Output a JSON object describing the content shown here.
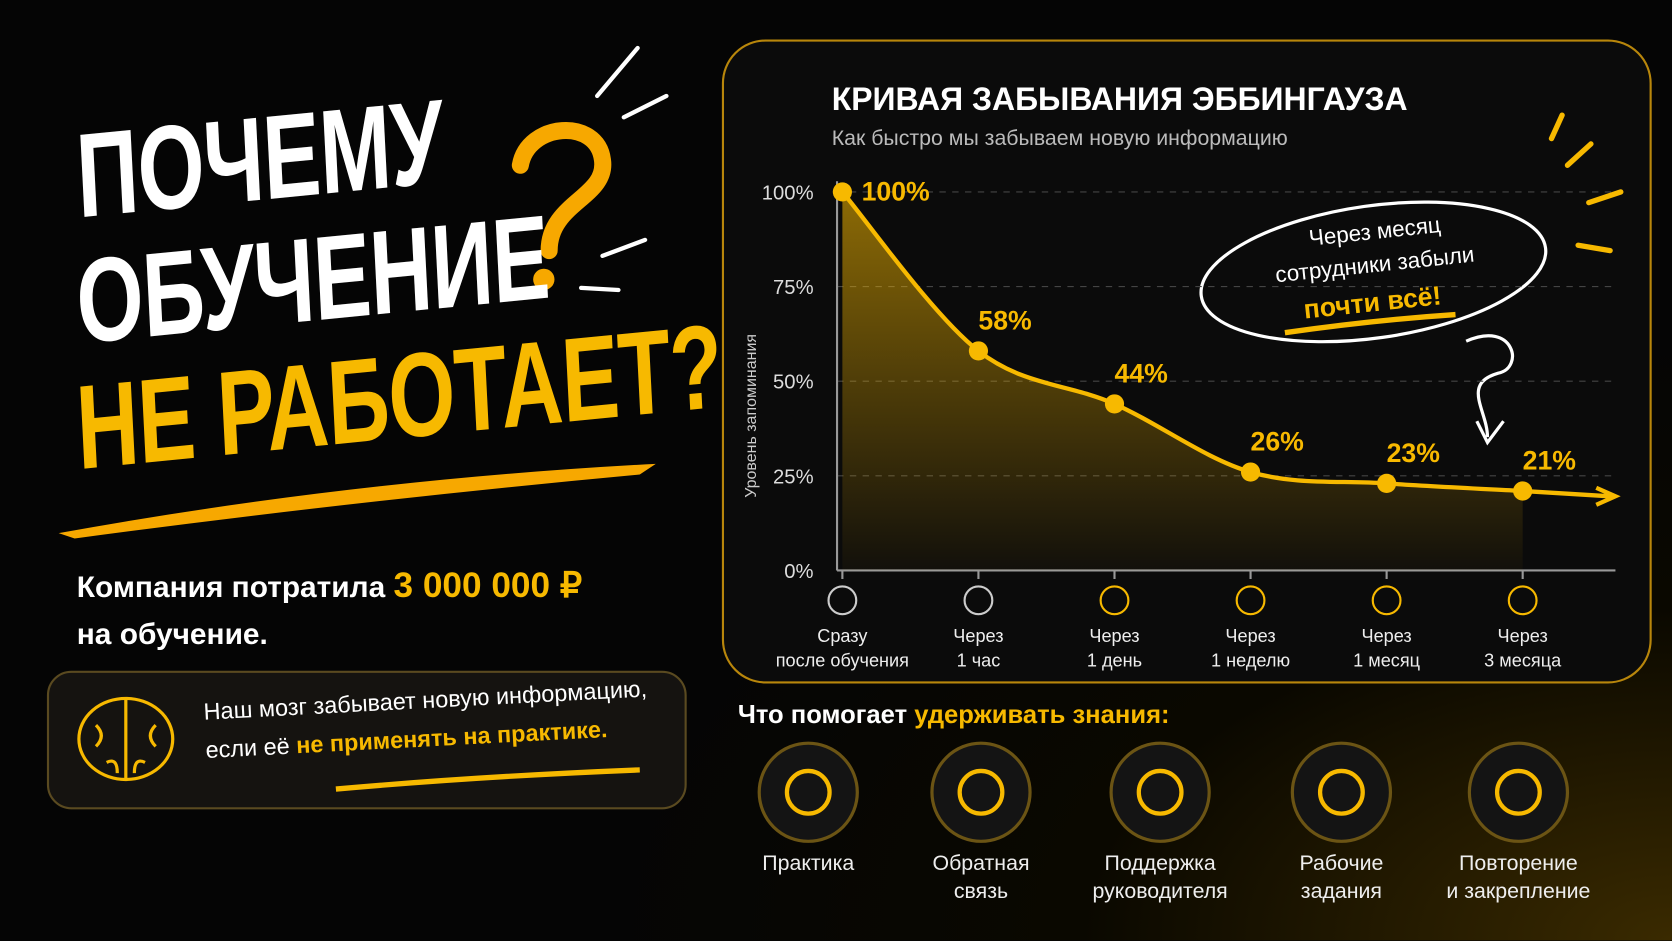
{
  "headline": {
    "line1": "ПОЧЕМУ",
    "line2": "ОБУЧЕНИЕ",
    "line3": "НЕ РАБОТАЕТ?"
  },
  "spend": {
    "text": "Компания потратила",
    "amount": "3 000 000 ₽",
    "text2": "на обучение."
  },
  "brain_note": {
    "line1": "Наш мозг забывает новую информацию,",
    "line2": "если её",
    "highlight": "не применять на практике."
  },
  "chart_data": {
    "type": "line",
    "title": "КРИВАЯ ЗАБЫВАНИЯ ЭББИНГАУЗА",
    "subtitle": "Как быстро мы забываем новую информацию",
    "y_label": "Уровень запоминания",
    "categories": [
      "Сразу\nпосле обучения",
      "Через\n1 час",
      "Через\n1 день",
      "Через\n1 неделю",
      "Через\n1 месяц",
      "Через\n3 месяца"
    ],
    "values": [
      100,
      58,
      44,
      26,
      23,
      21
    ],
    "value_labels": [
      "100%",
      "58%",
      "44%",
      "26%",
      "23%",
      "21%"
    ],
    "color": "#f7b900",
    "ylim": [
      0,
      100
    ],
    "yticks": [
      {
        "value": 0,
        "label": "0%"
      },
      {
        "value": 25,
        "label": "25%"
      },
      {
        "value": 50,
        "label": "50%"
      },
      {
        "value": 75,
        "label": "75%"
      },
      {
        "value": 100,
        "label": "100%"
      }
    ],
    "grid": true,
    "annotation": {
      "line1": "Через месяц",
      "line2": "сотрудники забыли",
      "highlight": "почти всё!"
    }
  },
  "helpers": {
    "title": "Что помогает",
    "highlight": "удерживать знания:",
    "items": [
      "Практика",
      "Обратная\nсвязь",
      "Поддержка\nруководителя",
      "Рабочие\nзадания",
      "Повторение\nи закрепление"
    ]
  }
}
